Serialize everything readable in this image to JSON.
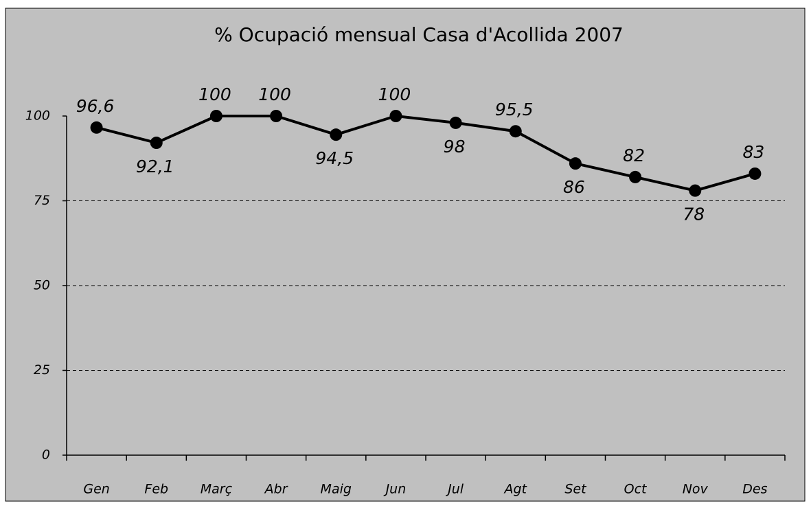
{
  "chart_data": {
    "type": "line",
    "title": "% Ocupació mensual Casa d'Acollida  2007",
    "categories": [
      "Gen",
      "Feb",
      "Març",
      "Abr",
      "Maig",
      "Jun",
      "Jul",
      "Agt",
      "Set",
      "Oct",
      "Nov",
      "Des"
    ],
    "values": [
      96.6,
      92.1,
      100,
      100,
      94.5,
      100,
      98,
      95.5,
      86,
      82,
      78,
      83
    ],
    "value_labels": [
      "96,6",
      "92,1",
      "100",
      "100",
      "94,5",
      "100",
      "98",
      "95,5",
      "86",
      "82",
      "78",
      "83"
    ],
    "color": "#000000",
    "ylim": [
      0,
      100
    ],
    "yticks": [
      0,
      25,
      50,
      75,
      100
    ],
    "grid": true
  }
}
